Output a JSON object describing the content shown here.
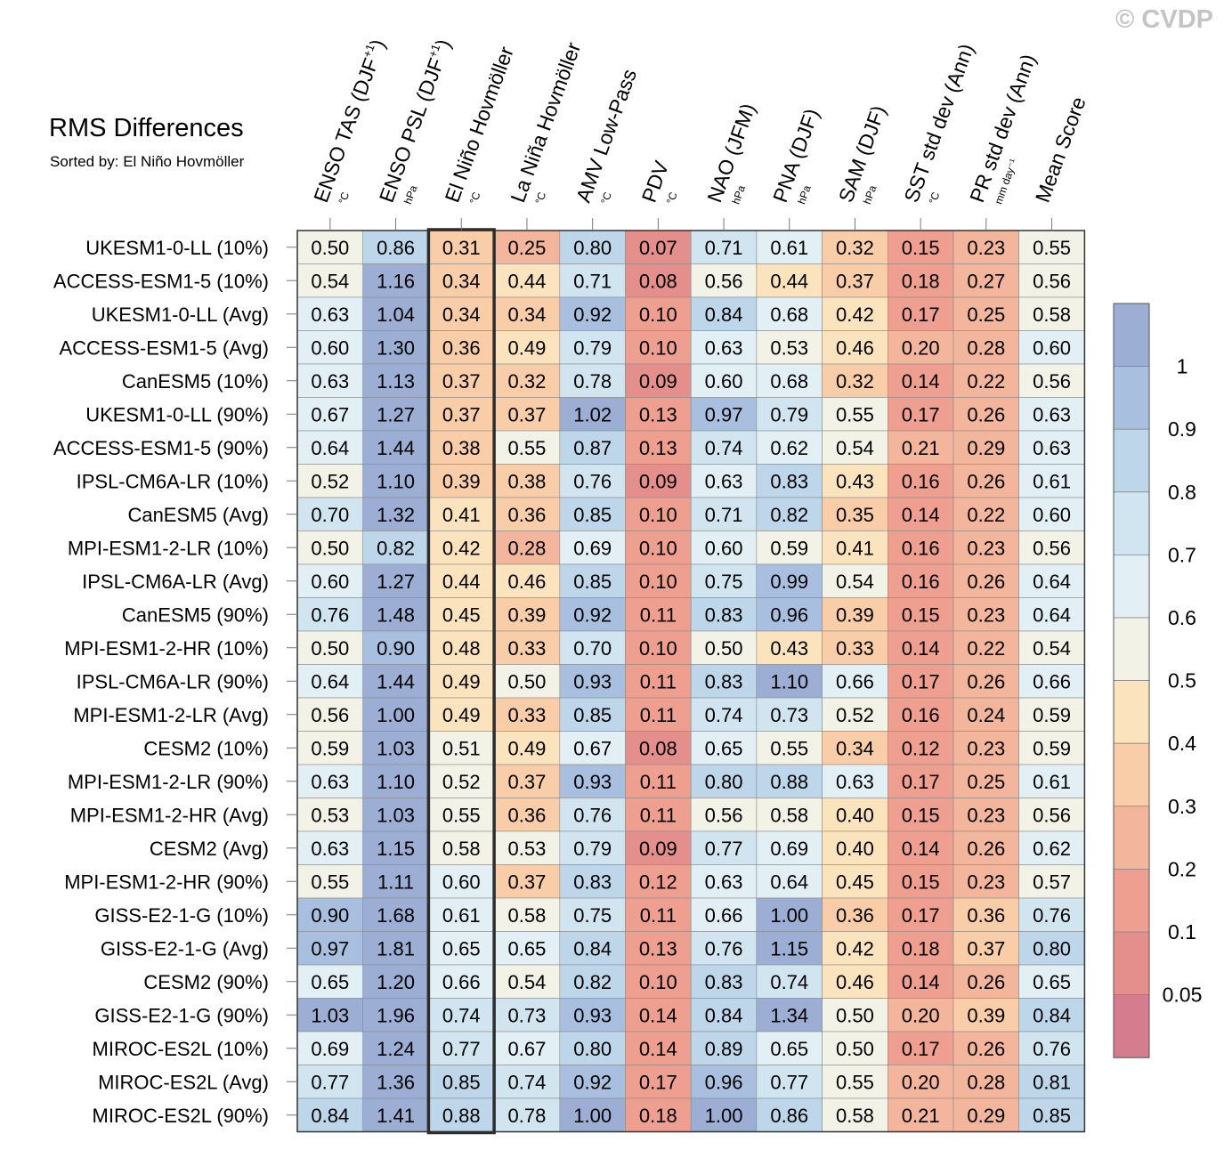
{
  "copyright": "© CVDP",
  "chart_data": {
    "type": "heatmap",
    "title": "RMS Differences",
    "subtitle": "Sorted by: El Niño Hovmöller",
    "columns": [
      {
        "label": "ENSO TAS (DJF",
        "sup": "+1",
        "close": ")",
        "unit": "°C"
      },
      {
        "label": "ENSO PSL (DJF",
        "sup": "+1",
        "close": ")",
        "unit": "hPa"
      },
      {
        "label": "El Niño Hovmöller",
        "sup": "",
        "close": "",
        "unit": "°C"
      },
      {
        "label": "La Niña Hovmöller",
        "sup": "",
        "close": "",
        "unit": "°C"
      },
      {
        "label": "AMV Low-Pass",
        "sup": "",
        "close": "",
        "unit": "°C"
      },
      {
        "label": "PDV",
        "sup": "",
        "close": "",
        "unit": "°C"
      },
      {
        "label": "NAO (JFM)",
        "sup": "",
        "close": "",
        "unit": "hPa"
      },
      {
        "label": "PNA (DJF)",
        "sup": "",
        "close": "",
        "unit": "hPa"
      },
      {
        "label": "SAM (DJF)",
        "sup": "",
        "close": "",
        "unit": "hPa"
      },
      {
        "label": "SST std dev (Ann)",
        "sup": "",
        "close": "",
        "unit": "°C"
      },
      {
        "label": "PR std dev (Ann)",
        "sup": "",
        "close": "",
        "unit": "mm day⁻¹"
      },
      {
        "label": "Mean Score",
        "sup": "",
        "close": "",
        "unit": ""
      }
    ],
    "highlighted_column": "El Niño Hovmöller",
    "rows": [
      "UKESM1-0-LL (10%)",
      "ACCESS-ESM1-5 (10%)",
      "UKESM1-0-LL (Avg)",
      "ACCESS-ESM1-5 (Avg)",
      "CanESM5 (10%)",
      "UKESM1-0-LL (90%)",
      "ACCESS-ESM1-5 (90%)",
      "IPSL-CM6A-LR (10%)",
      "CanESM5 (Avg)",
      "MPI-ESM1-2-LR (10%)",
      "IPSL-CM6A-LR (Avg)",
      "CanESM5 (90%)",
      "MPI-ESM1-2-HR (10%)",
      "IPSL-CM6A-LR (90%)",
      "MPI-ESM1-2-LR (Avg)",
      "CESM2 (10%)",
      "MPI-ESM1-2-LR (90%)",
      "MPI-ESM1-2-HR (Avg)",
      "CESM2 (Avg)",
      "MPI-ESM1-2-HR (90%)",
      "GISS-E2-1-G (10%)",
      "GISS-E2-1-G (Avg)",
      "CESM2 (90%)",
      "GISS-E2-1-G (90%)",
      "MIROC-ES2L (10%)",
      "MIROC-ES2L (Avg)",
      "MIROC-ES2L (90%)"
    ],
    "values": [
      [
        "0.50",
        "0.86",
        "0.31",
        "0.25",
        "0.80",
        "0.07",
        "0.71",
        "0.61",
        "0.32",
        "0.15",
        "0.23",
        "0.55"
      ],
      [
        "0.54",
        "1.16",
        "0.34",
        "0.44",
        "0.71",
        "0.08",
        "0.56",
        "0.44",
        "0.37",
        "0.18",
        "0.27",
        "0.56"
      ],
      [
        "0.63",
        "1.04",
        "0.34",
        "0.34",
        "0.92",
        "0.10",
        "0.84",
        "0.68",
        "0.42",
        "0.17",
        "0.25",
        "0.58"
      ],
      [
        "0.60",
        "1.30",
        "0.36",
        "0.49",
        "0.79",
        "0.10",
        "0.63",
        "0.53",
        "0.46",
        "0.20",
        "0.28",
        "0.60"
      ],
      [
        "0.63",
        "1.13",
        "0.37",
        "0.32",
        "0.78",
        "0.09",
        "0.60",
        "0.68",
        "0.32",
        "0.14",
        "0.22",
        "0.56"
      ],
      [
        "0.67",
        "1.27",
        "0.37",
        "0.37",
        "1.02",
        "0.13",
        "0.97",
        "0.79",
        "0.55",
        "0.17",
        "0.26",
        "0.63"
      ],
      [
        "0.64",
        "1.44",
        "0.38",
        "0.55",
        "0.87",
        "0.13",
        "0.74",
        "0.62",
        "0.54",
        "0.21",
        "0.29",
        "0.63"
      ],
      [
        "0.52",
        "1.10",
        "0.39",
        "0.38",
        "0.76",
        "0.09",
        "0.63",
        "0.83",
        "0.43",
        "0.16",
        "0.26",
        "0.61"
      ],
      [
        "0.70",
        "1.32",
        "0.41",
        "0.36",
        "0.85",
        "0.10",
        "0.71",
        "0.82",
        "0.35",
        "0.14",
        "0.22",
        "0.60"
      ],
      [
        "0.50",
        "0.82",
        "0.42",
        "0.28",
        "0.69",
        "0.10",
        "0.60",
        "0.59",
        "0.41",
        "0.16",
        "0.23",
        "0.56"
      ],
      [
        "0.60",
        "1.27",
        "0.44",
        "0.46",
        "0.85",
        "0.10",
        "0.75",
        "0.99",
        "0.54",
        "0.16",
        "0.26",
        "0.64"
      ],
      [
        "0.76",
        "1.48",
        "0.45",
        "0.39",
        "0.92",
        "0.11",
        "0.83",
        "0.96",
        "0.39",
        "0.15",
        "0.23",
        "0.64"
      ],
      [
        "0.50",
        "0.90",
        "0.48",
        "0.33",
        "0.70",
        "0.10",
        "0.50",
        "0.43",
        "0.33",
        "0.14",
        "0.22",
        "0.54"
      ],
      [
        "0.64",
        "1.44",
        "0.49",
        "0.50",
        "0.93",
        "0.11",
        "0.83",
        "1.10",
        "0.66",
        "0.17",
        "0.26",
        "0.66"
      ],
      [
        "0.56",
        "1.00",
        "0.49",
        "0.33",
        "0.85",
        "0.11",
        "0.74",
        "0.73",
        "0.52",
        "0.16",
        "0.24",
        "0.59"
      ],
      [
        "0.59",
        "1.03",
        "0.51",
        "0.49",
        "0.67",
        "0.08",
        "0.65",
        "0.55",
        "0.34",
        "0.12",
        "0.23",
        "0.59"
      ],
      [
        "0.63",
        "1.10",
        "0.52",
        "0.37",
        "0.93",
        "0.11",
        "0.80",
        "0.88",
        "0.63",
        "0.17",
        "0.25",
        "0.61"
      ],
      [
        "0.53",
        "1.03",
        "0.55",
        "0.36",
        "0.76",
        "0.11",
        "0.56",
        "0.58",
        "0.40",
        "0.15",
        "0.23",
        "0.56"
      ],
      [
        "0.63",
        "1.15",
        "0.58",
        "0.53",
        "0.79",
        "0.09",
        "0.77",
        "0.69",
        "0.40",
        "0.14",
        "0.26",
        "0.62"
      ],
      [
        "0.55",
        "1.11",
        "0.60",
        "0.37",
        "0.83",
        "0.12",
        "0.63",
        "0.64",
        "0.45",
        "0.15",
        "0.23",
        "0.57"
      ],
      [
        "0.90",
        "1.68",
        "0.61",
        "0.58",
        "0.75",
        "0.11",
        "0.66",
        "1.00",
        "0.36",
        "0.17",
        "0.36",
        "0.76"
      ],
      [
        "0.97",
        "1.81",
        "0.65",
        "0.65",
        "0.84",
        "0.13",
        "0.76",
        "1.15",
        "0.42",
        "0.18",
        "0.37",
        "0.80"
      ],
      [
        "0.65",
        "1.20",
        "0.66",
        "0.54",
        "0.82",
        "0.10",
        "0.83",
        "0.74",
        "0.46",
        "0.14",
        "0.26",
        "0.65"
      ],
      [
        "1.03",
        "1.96",
        "0.74",
        "0.73",
        "0.93",
        "0.14",
        "0.84",
        "1.34",
        "0.50",
        "0.20",
        "0.39",
        "0.84"
      ],
      [
        "0.69",
        "1.24",
        "0.77",
        "0.67",
        "0.80",
        "0.14",
        "0.89",
        "0.65",
        "0.50",
        "0.17",
        "0.26",
        "0.76"
      ],
      [
        "0.77",
        "1.36",
        "0.85",
        "0.74",
        "0.92",
        "0.17",
        "0.96",
        "0.77",
        "0.55",
        "0.20",
        "0.28",
        "0.81"
      ],
      [
        "0.84",
        "1.41",
        "0.88",
        "0.78",
        "1.00",
        "0.18",
        "1.00",
        "0.86",
        "0.58",
        "0.21",
        "0.29",
        "0.85"
      ]
    ],
    "colorbar": {
      "boundaries": [
        0,
        0.05,
        0.1,
        0.2,
        0.3,
        0.4,
        0.5,
        0.6,
        0.7,
        0.8,
        0.9,
        1.0,
        99
      ],
      "labels": [
        "1",
        "0.9",
        "0.8",
        "0.7",
        "0.6",
        "0.5",
        "0.4",
        "0.3",
        "0.2",
        "0.1",
        "0.05"
      ],
      "colors": [
        "#d57d8f",
        "#e58f8d",
        "#ef9f8f",
        "#f3b59b",
        "#f8cda8",
        "#fbe3bd",
        "#f3f2e7",
        "#e2eff5",
        "#d0e5f0",
        "#bed6ea",
        "#a8bfdf",
        "#9caed3"
      ]
    }
  }
}
